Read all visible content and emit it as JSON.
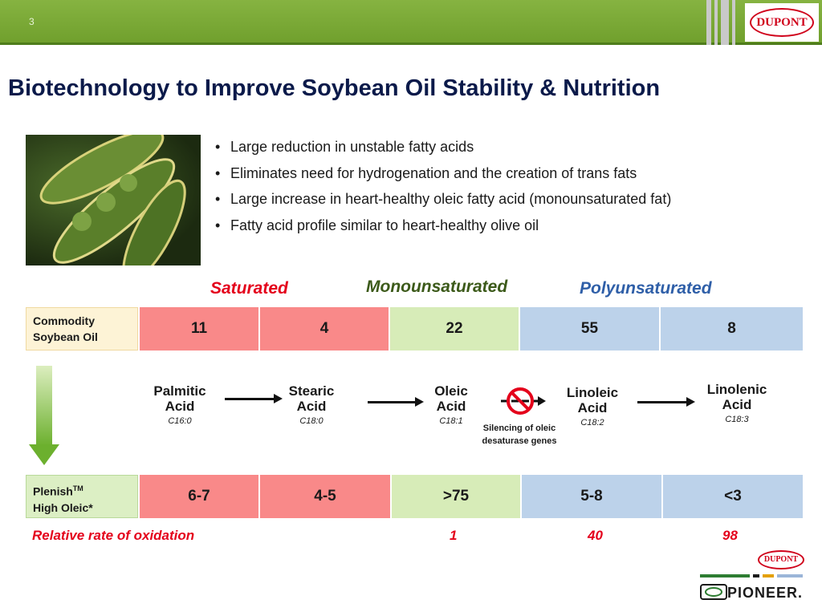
{
  "header": {
    "slide_number": "3",
    "logo_text": "DUPONT"
  },
  "title": "Biotechnology to Improve Soybean Oil Stability & Nutrition",
  "bullets": [
    "Large reduction in unstable fatty acids",
    "Eliminates need for hydrogenation and the creation of trans fats",
    "Large increase in heart-healthy oleic fatty acid (monounsaturated fat)",
    "Fatty acid profile similar to heart-healthy olive oil"
  ],
  "categories": {
    "saturated": "Saturated",
    "monounsaturated": "Monounsaturated",
    "polyunsaturated": "Polyunsaturated"
  },
  "colors": {
    "saturated": "#f98989",
    "monounsaturated": "#d7ecb8",
    "polyunsaturated": "#bcd2ea",
    "saturated_text": "#e4001b",
    "monounsaturated_text": "#3c5a1a",
    "polyunsaturated_text": "#2f5fa8"
  },
  "commodity": {
    "label_line1": "Commodity",
    "label_line2": "Soybean Oil",
    "values": [
      "11",
      "4",
      "22",
      "55",
      "8"
    ]
  },
  "acids": [
    {
      "name1": "Palmitic",
      "name2": "Acid",
      "code": "C16:0"
    },
    {
      "name1": "Stearic",
      "name2": "Acid",
      "code": "C18:0"
    },
    {
      "name1": "Oleic",
      "name2": "Acid",
      "code": "C18:1"
    },
    {
      "name1": "Linoleic",
      "name2": "Acid",
      "code": "C18:2"
    },
    {
      "name1": "Linolenic",
      "name2": "Acid",
      "code": "C18:3"
    }
  ],
  "silencing_note": {
    "line1": "Silencing of oleic",
    "line2": "desaturase genes"
  },
  "plenish": {
    "label_line1": "Plenish",
    "trademark": "TM",
    "label_line2": "High Oleic*",
    "values": [
      "6-7",
      "4-5",
      ">75",
      "5-8",
      "<3"
    ]
  },
  "oxidation": {
    "label": "Relative rate of oxidation",
    "values": [
      "1",
      "40",
      "98"
    ]
  },
  "footer": {
    "dupont_logo": "DUPONT",
    "pioneer_logo": "PIONEER."
  }
}
